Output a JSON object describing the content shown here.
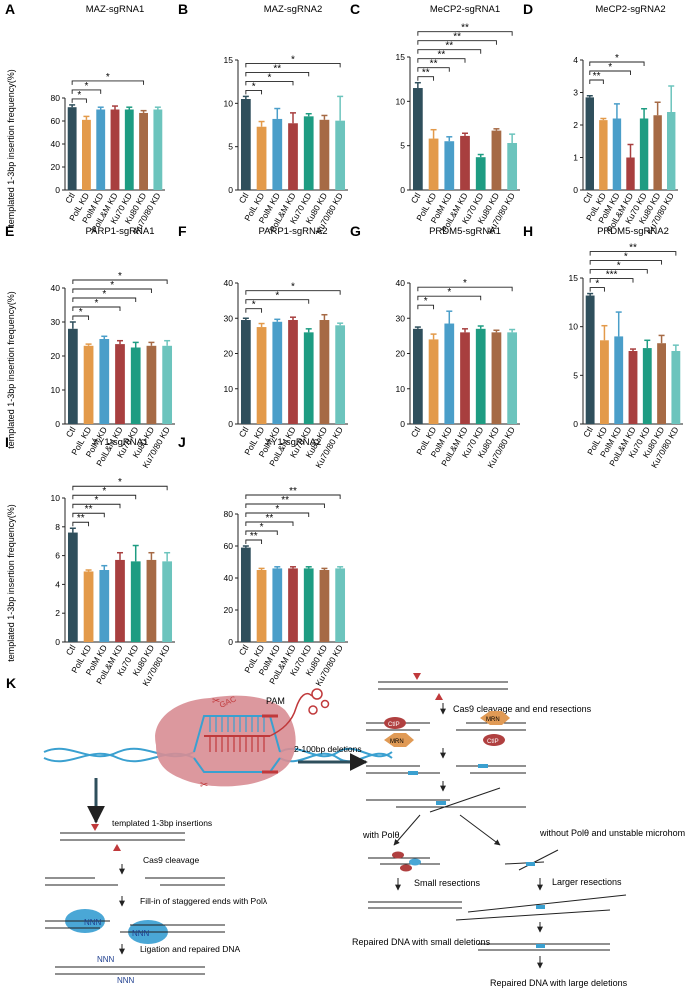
{
  "figure": {
    "ylabel": "templated 1-3bp insertion frequency(%)"
  },
  "colors": {
    "Ctl": "#2f4f5c",
    "PolL KD": "#e39a4a",
    "PolM KD": "#4a9ec9",
    "PolL&M KD": "#a83f3f",
    "Ku70 KD": "#1e9c82",
    "Ku80 KD": "#a66a45",
    "Ku70/80 KD": "#6cc4bd",
    "dna_blue": "#3aa0d0",
    "dna_red": "#c0393b",
    "cas9_pink": "#d88d93",
    "protein_blue": "#4aa7d6",
    "ctip_red": "#b04040",
    "mrn_orange": "#e09a55"
  },
  "chart_data": [
    {
      "label": "A",
      "type": "bar",
      "title": "MAZ-sgRNA1",
      "categories": [
        "Ctl",
        "PolL KD",
        "PolM KD",
        "PolL&M KD",
        "Ku70 KD",
        "Ku80 KD",
        "Ku70/80 KD"
      ],
      "values": [
        72,
        61,
        70,
        70,
        70,
        67,
        70
      ],
      "errors": [
        2,
        3,
        2,
        3,
        2,
        2,
        2
      ],
      "ylim": [
        0,
        80
      ],
      "yticks": [
        "0",
        "20",
        "40",
        "60",
        "80"
      ],
      "sig": [
        {
          "to": 1,
          "label": "*"
        },
        {
          "to": 2,
          "label": "*"
        },
        {
          "to": 5,
          "label": "*"
        }
      ]
    },
    {
      "label": "B",
      "type": "bar",
      "title": "MAZ-sgRNA2",
      "categories": [
        "Ctl",
        "PolL KD",
        "PolM KD",
        "PolL&M KD",
        "Ku70 KD",
        "Ku80 KD",
        "Ku70/80 KD"
      ],
      "values": [
        10.5,
        7.3,
        8.2,
        7.7,
        8.5,
        8.1,
        8.0
      ],
      "errors": [
        0.3,
        0.6,
        1.2,
        1.2,
        0.3,
        0.5,
        2.8
      ],
      "ylim": [
        0,
        15
      ],
      "yticks": [
        "0",
        "5",
        "10",
        "15"
      ],
      "sig": [
        {
          "to": 1,
          "label": "*"
        },
        {
          "to": 3,
          "label": "*"
        },
        {
          "to": 4,
          "label": "**"
        },
        {
          "to": 6,
          "label": "*"
        }
      ]
    },
    {
      "label": "C",
      "type": "bar",
      "title": "MeCP2-sgRNA1",
      "categories": [
        "Ctl",
        "PolL KD",
        "PolM KD",
        "PolL&M KD",
        "Ku70 KD",
        "Ku80 KD",
        "Ku70/80 KD"
      ],
      "values": [
        11.5,
        5.8,
        5.5,
        6.1,
        3.7,
        6.7,
        5.3
      ],
      "errors": [
        0.6,
        1.0,
        0.5,
        0.3,
        0.3,
        0.2,
        1.0
      ],
      "ylim": [
        0,
        15
      ],
      "yticks": [
        "0",
        "5",
        "10",
        "15"
      ],
      "sig": [
        {
          "to": 1,
          "label": "**"
        },
        {
          "to": 2,
          "label": "**"
        },
        {
          "to": 3,
          "label": "**"
        },
        {
          "to": 4,
          "label": "**"
        },
        {
          "to": 5,
          "label": "**"
        },
        {
          "to": 6,
          "label": "**"
        }
      ]
    },
    {
      "label": "D",
      "type": "bar",
      "title": "MeCP2-sgRNA2",
      "categories": [
        "Ctl",
        "PolL KD",
        "PolM KD",
        "PolL&M KD",
        "Ku70 KD",
        "Ku80 KD",
        "Ku70/80 KD"
      ],
      "values": [
        2.85,
        2.15,
        2.2,
        1.0,
        2.2,
        2.3,
        2.4
      ],
      "errors": [
        0.05,
        0.05,
        0.45,
        0.4,
        0.3,
        0.4,
        0.8
      ],
      "ylim": [
        0,
        4
      ],
      "yticks": [
        "0",
        "1",
        "2",
        "3",
        "4"
      ],
      "sig": [
        {
          "to": 1,
          "label": "**"
        },
        {
          "to": 3,
          "label": "*"
        },
        {
          "to": 4,
          "label": "*"
        }
      ]
    },
    {
      "label": "E",
      "type": "bar",
      "title": "PARP1-sgRNA1",
      "categories": [
        "Ctl",
        "PolL KD",
        "PolM KD",
        "PolL&M KD",
        "Ku70 KD",
        "Ku80 KD",
        "Ku70/80 KD"
      ],
      "values": [
        28,
        23,
        25,
        23.5,
        22.5,
        23,
        23
      ],
      "errors": [
        2,
        0.5,
        0.8,
        1,
        1.5,
        1,
        1.5
      ],
      "ylim": [
        0,
        40
      ],
      "yticks": [
        "0",
        "10",
        "20",
        "30",
        "40"
      ],
      "sig": [
        {
          "to": 1,
          "label": "*"
        },
        {
          "to": 3,
          "label": "*"
        },
        {
          "to": 4,
          "label": "*"
        },
        {
          "to": 5,
          "label": "*"
        },
        {
          "to": 6,
          "label": "*"
        }
      ]
    },
    {
      "label": "F",
      "type": "bar",
      "title": "PARP1-sgRNA2",
      "categories": [
        "Ctl",
        "PolL KD",
        "PolM KD",
        "PolL&M KD",
        "Ku70 KD",
        "Ku80 KD",
        "Ku70/80 KD"
      ],
      "values": [
        29.5,
        27.5,
        29,
        29.5,
        26,
        29.5,
        28
      ],
      "errors": [
        0.5,
        1,
        0.7,
        0.8,
        1,
        1.5,
        0.6
      ],
      "ylim": [
        0,
        40
      ],
      "yticks": [
        "0",
        "10",
        "20",
        "30",
        "40"
      ],
      "sig": [
        {
          "to": 1,
          "label": "*"
        },
        {
          "to": 4,
          "label": "*"
        },
        {
          "to": 6,
          "label": "*"
        }
      ]
    },
    {
      "label": "G",
      "type": "bar",
      "title": "PRDM5-sgRNA1",
      "categories": [
        "Ctl",
        "PolL KD",
        "PolM KD",
        "PolL&M KD",
        "Ku70 KD",
        "Ku80 KD",
        "Ku70/80 KD"
      ],
      "values": [
        27,
        24,
        28.5,
        26,
        27,
        26,
        26
      ],
      "errors": [
        0.5,
        1.5,
        3.5,
        1,
        0.8,
        0.6,
        0.8
      ],
      "ylim": [
        0,
        40
      ],
      "yticks": [
        "0",
        "10",
        "20",
        "30",
        "40"
      ],
      "sig": [
        {
          "to": 1,
          "label": "*"
        },
        {
          "to": 4,
          "label": "*"
        },
        {
          "to": 6,
          "label": "*"
        }
      ]
    },
    {
      "label": "H",
      "type": "bar",
      "title": "PRDM5-sgRNA2",
      "categories": [
        "Ctl",
        "PolL KD",
        "PolM KD",
        "PolL&M KD",
        "Ku70 KD",
        "Ku80 KD",
        "Ku70/80 KD"
      ],
      "values": [
        13.2,
        8.6,
        9.0,
        7.5,
        7.8,
        8.3,
        7.5
      ],
      "errors": [
        0.2,
        1.5,
        2.5,
        0.2,
        0.8,
        0.8,
        0.6
      ],
      "ylim": [
        0,
        15
      ],
      "yticks": [
        "0",
        "5",
        "10",
        "15"
      ],
      "sig": [
        {
          "to": 1,
          "label": "*"
        },
        {
          "to": 3,
          "label": "***"
        },
        {
          "to": 4,
          "label": "*"
        },
        {
          "to": 5,
          "label": "*"
        },
        {
          "to": 6,
          "label": "**"
        }
      ]
    },
    {
      "label": "I",
      "type": "bar",
      "title": "YY1-sgRNA1",
      "categories": [
        "Ctl",
        "PolL KD",
        "PolM KD",
        "PolL&M KD",
        "Ku70 KD",
        "Ku80 KD",
        "Ku70/80 KD"
      ],
      "values": [
        7.6,
        4.9,
        5.0,
        5.7,
        5.6,
        5.7,
        5.6
      ],
      "errors": [
        0.3,
        0.1,
        0.3,
        0.5,
        1.1,
        0.5,
        0.6
      ],
      "ylim": [
        0,
        10
      ],
      "yticks": [
        "0",
        "2",
        "4",
        "6",
        "8",
        "10"
      ],
      "sig": [
        {
          "to": 1,
          "label": "**"
        },
        {
          "to": 2,
          "label": "**"
        },
        {
          "to": 3,
          "label": "*"
        },
        {
          "to": 4,
          "label": "*"
        },
        {
          "to": 6,
          "label": "*"
        }
      ]
    },
    {
      "label": "J",
      "type": "bar",
      "title": "YY1-sgRNA2",
      "categories": [
        "Ctl",
        "PolL KD",
        "PolM KD",
        "PolL&M KD",
        "Ku70 KD",
        "Ku80 KD",
        "Ku70/80 KD"
      ],
      "values": [
        59,
        45,
        46,
        46,
        46,
        45,
        46
      ],
      "errors": [
        1,
        1,
        1,
        1,
        1,
        1,
        1
      ],
      "ylim": [
        0,
        80
      ],
      "yticks": [
        "0",
        "20",
        "40",
        "60",
        "80"
      ],
      "sig": [
        {
          "to": 1,
          "label": "**"
        },
        {
          "to": 2,
          "label": "*"
        },
        {
          "to": 3,
          "label": "**"
        },
        {
          "to": 4,
          "label": "*"
        },
        {
          "to": 5,
          "label": "**"
        },
        {
          "to": 6,
          "label": "**"
        }
      ]
    }
  ],
  "diagram": {
    "label": "K",
    "cas9": {
      "guide_letters": "GAC",
      "pam": "PAM"
    },
    "templated": {
      "arrow_label": "templated 1-3bp insertions",
      "cleavage": "Cas9 cleavage",
      "fillin": "Fill-in of staggered ends with Polλ",
      "nnn": "NNN",
      "ligation": "Ligation and repaired DNA"
    },
    "deletions": {
      "arrow_label": "2-100bp deletions",
      "cleavage": "Cas9 cleavage and end resections",
      "ctip": "CtIP",
      "mrn": "MRN",
      "with_pol": "with Polθ",
      "without_pol": "without Polθ and unstable microhomology structure",
      "small_resections": "Small resections",
      "larger_resections": "Larger resections",
      "repaired_small": "Repaired DNA with small deletions",
      "repaired_large": "Repaired DNA with large deletions"
    }
  }
}
